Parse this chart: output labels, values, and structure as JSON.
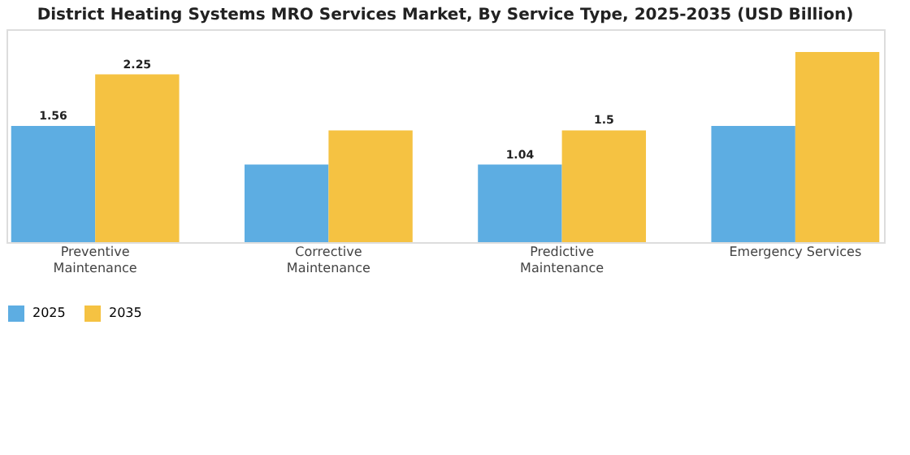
{
  "chart_data": {
    "type": "bar",
    "title": "District Heating Systems MRO Services Market, By Service Type, 2025-2035 (USD Billion)",
    "categories": [
      "Preventive Maintenance",
      "Corrective Maintenance",
      "Predictive Maintenance",
      "Emergency Services"
    ],
    "series": [
      {
        "name": "2025",
        "color": "#5dade2",
        "values": [
          1.56,
          1.04,
          1.04,
          1.56
        ],
        "value_labels": [
          "1.56",
          null,
          "1.04",
          null
        ]
      },
      {
        "name": "2035",
        "color": "#f5c242",
        "values": [
          2.25,
          1.5,
          1.5,
          2.55
        ],
        "value_labels": [
          "2.25",
          null,
          "1.5",
          null
        ]
      }
    ],
    "legend": "bottom",
    "grid": false,
    "tick_labels": "x"
  }
}
